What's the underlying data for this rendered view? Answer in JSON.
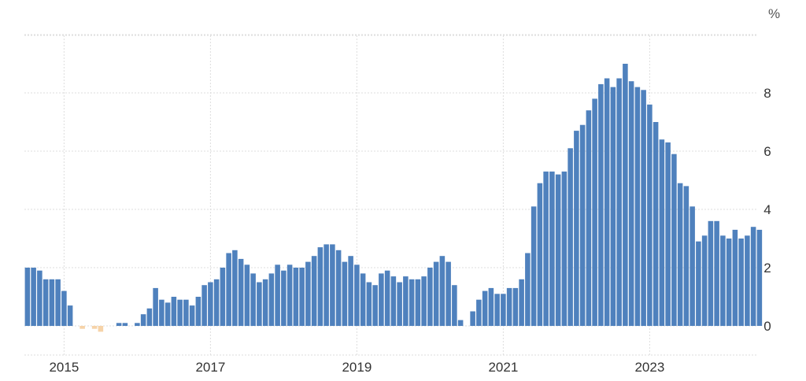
{
  "chart_data": {
    "type": "bar",
    "title": "",
    "xlabel": "",
    "ylabel": "",
    "unit": "%",
    "ylim": [
      -1,
      10
    ],
    "yticks": [
      0,
      2,
      4,
      6,
      8
    ],
    "xtick_labels": [
      "2015",
      "2017",
      "2019",
      "2021",
      "2023"
    ],
    "grid": true,
    "colors": {
      "positive": "#4F81BD",
      "negative": "#F6D3A8",
      "grid": "#DDDDDD"
    },
    "start": "2014-07",
    "series": [
      {
        "values": [
          2.0,
          2.0,
          1.9,
          1.6,
          1.6,
          1.6,
          1.2,
          0.7,
          0.0,
          -0.1,
          0.0,
          -0.1,
          -0.2,
          0.0,
          0.0,
          0.1,
          0.1,
          0.0,
          0.1,
          0.4,
          0.6,
          1.3,
          0.9,
          0.8,
          1.0,
          0.9,
          0.9,
          0.7,
          1.0,
          1.4,
          1.5,
          1.6,
          2.0,
          2.5,
          2.6,
          2.3,
          2.1,
          1.8,
          1.5,
          1.6,
          1.8,
          2.1,
          1.9,
          2.1,
          2.0,
          2.0,
          2.2,
          2.4,
          2.7,
          2.8,
          2.8,
          2.6,
          2.2,
          2.4,
          2.1,
          1.8,
          1.5,
          1.4,
          1.8,
          1.9,
          1.7,
          1.5,
          1.7,
          1.6,
          1.6,
          1.7,
          2.0,
          2.2,
          2.4,
          2.2,
          1.4,
          0.2,
          0.0,
          0.5,
          0.9,
          1.2,
          1.3,
          1.1,
          1.1,
          1.3,
          1.3,
          1.6,
          2.5,
          4.1,
          4.9,
          5.3,
          5.3,
          5.2,
          5.3,
          6.1,
          6.7,
          6.9,
          7.4,
          7.8,
          8.3,
          8.5,
          8.2,
          8.5,
          9.0,
          8.4,
          8.2,
          8.1,
          7.6,
          7.0,
          6.4,
          6.3,
          5.9,
          4.9,
          4.8,
          4.1,
          2.9,
          3.1,
          3.6,
          3.6,
          3.1,
          3.0,
          3.3,
          3.0,
          3.1,
          3.4,
          3.3
        ]
      }
    ]
  }
}
